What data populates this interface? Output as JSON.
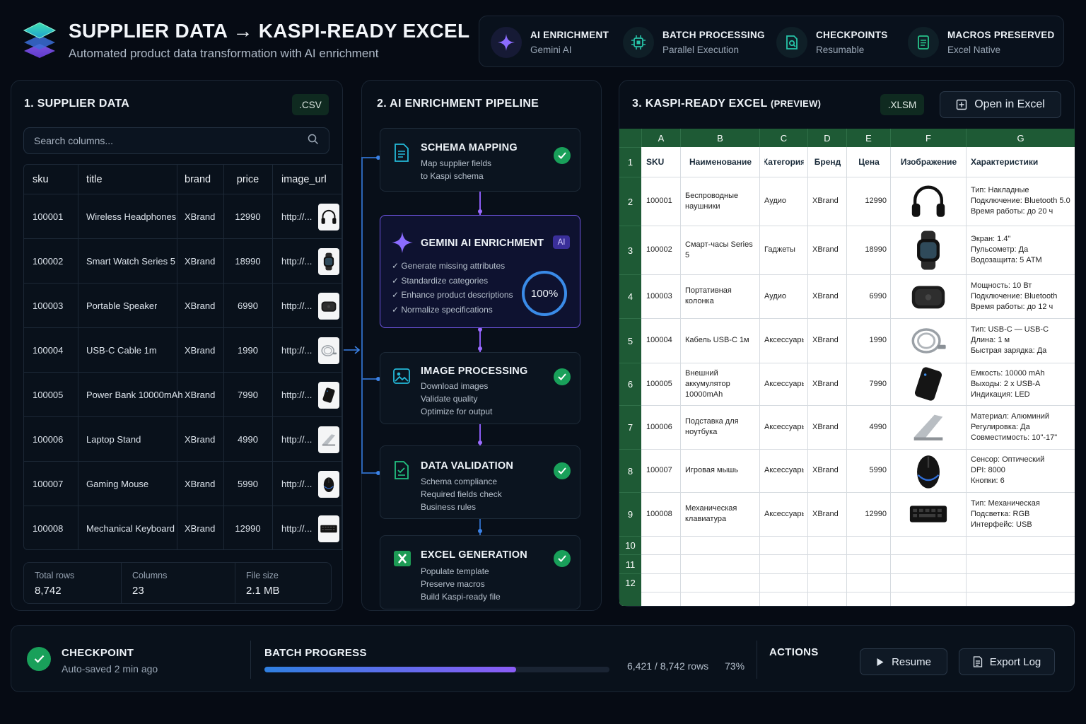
{
  "header": {
    "title": "SUPPLIER DATA → KASPI-READY EXCEL",
    "subtitle": "Automated product data transformation with AI enrichment",
    "features": [
      {
        "title": "AI ENRICHMENT",
        "subtitle": "Gemini AI",
        "icon": "sparkle-icon"
      },
      {
        "title": "BATCH PROCESSING",
        "subtitle": "Parallel Execution",
        "icon": "chip-icon"
      },
      {
        "title": "CHECKPOINTS",
        "subtitle": "Resumable",
        "icon": "checkpoint-icon"
      },
      {
        "title": "MACROS PRESERVED",
        "subtitle": "Excel Native",
        "icon": "document-icon"
      }
    ]
  },
  "supplier": {
    "title": "1. SUPPLIER DATA",
    "format_badge": ".CSV",
    "search_placeholder": "Search columns...",
    "columns": [
      "sku",
      "title",
      "brand",
      "price",
      "image_url"
    ],
    "rows": [
      {
        "sku": "100001",
        "title": "Wireless Headphones",
        "brand": "XBrand",
        "price": "12990",
        "image_url": "http://...",
        "icon": "headphones-icon"
      },
      {
        "sku": "100002",
        "title": "Smart Watch Series 5",
        "brand": "XBrand",
        "price": "18990",
        "image_url": "http://...",
        "icon": "watch-icon"
      },
      {
        "sku": "100003",
        "title": "Portable Speaker",
        "brand": "XBrand",
        "price": "6990",
        "image_url": "http://...",
        "icon": "speaker-icon"
      },
      {
        "sku": "100004",
        "title": "USB-C Cable 1m",
        "brand": "XBrand",
        "price": "1990",
        "image_url": "http://...",
        "icon": "cable-icon"
      },
      {
        "sku": "100005",
        "title": "Power Bank 10000mAh",
        "brand": "XBrand",
        "price": "7990",
        "image_url": "http://...",
        "icon": "powerbank-icon"
      },
      {
        "sku": "100006",
        "title": "Laptop Stand",
        "brand": "XBrand",
        "price": "4990",
        "image_url": "http://...",
        "icon": "laptop-stand-icon"
      },
      {
        "sku": "100007",
        "title": "Gaming Mouse",
        "brand": "XBrand",
        "price": "5990",
        "image_url": "http://...",
        "icon": "mouse-icon"
      },
      {
        "sku": "100008",
        "title": "Mechanical Keyboard",
        "brand": "XBrand",
        "price": "12990",
        "image_url": "http://...",
        "icon": "keyboard-icon"
      }
    ],
    "stats": [
      {
        "label": "Total rows",
        "value": "8,742"
      },
      {
        "label": "Columns",
        "value": "23"
      },
      {
        "label": "File size",
        "value": "2.1 MB"
      }
    ]
  },
  "pipeline": {
    "title": "2. AI ENRICHMENT PIPELINE",
    "schema": {
      "name": "SCHEMA MAPPING",
      "lines": [
        "Map supplier fields",
        "to Kaspi schema"
      ]
    },
    "gemini": {
      "name": "GEMINI AI ENRICHMENT",
      "badge": "AI",
      "items": [
        "✓ Generate missing attributes",
        "✓ Standardize categories",
        "✓ Enhance product descriptions",
        "✓ Normalize specifications"
      ],
      "progress_label": "100%",
      "progress": 1.0
    },
    "image": {
      "name": "IMAGE PROCESSING",
      "lines": [
        "Download images",
        "Validate quality",
        "Optimize for output"
      ]
    },
    "validation": {
      "name": "DATA VALIDATION",
      "lines": [
        "Schema compliance",
        "Required fields check",
        "Business rules"
      ]
    },
    "excel": {
      "name": "EXCEL GENERATION",
      "lines": [
        "Populate template",
        "Preserve macros",
        "Build Kaspi-ready file"
      ]
    }
  },
  "excel": {
    "title": "3. KASPI-READY EXCEL",
    "title_suffix": "(PREVIEW)",
    "format_badge": ".XLSM",
    "open_button": "Open in Excel",
    "col_letters": [
      "A",
      "B",
      "C",
      "D",
      "E",
      "F",
      "G"
    ],
    "row_numbers": [
      "1",
      "2",
      "3",
      "4",
      "5",
      "6",
      "7",
      "8",
      "9",
      "10",
      "11",
      "12"
    ],
    "headers": [
      "SKU",
      "Наименование",
      "Категория",
      "Бренд",
      "Цена",
      "Изображение",
      "Характеристики"
    ],
    "rows": [
      {
        "sku": "100001",
        "name": "Беспроводные наушники",
        "category": "Аудио",
        "brand": "XBrand",
        "price": "12990",
        "icon": "headphones-icon",
        "specs": [
          "Тип: Накладные",
          "Подключение: Bluetooth 5.0",
          "Время работы: до 20 ч"
        ]
      },
      {
        "sku": "100002",
        "name": "Смарт-часы Series 5",
        "category": "Гаджеты",
        "brand": "XBrand",
        "price": "18990",
        "icon": "watch-icon",
        "specs": [
          "Экран: 1.4\"",
          "Пульсометр: Да",
          "Водозащита: 5 ATM"
        ]
      },
      {
        "sku": "100003",
        "name": "Портативная колонка",
        "category": "Аудио",
        "brand": "XBrand",
        "price": "6990",
        "icon": "speaker-icon",
        "specs": [
          "Мощность: 10 Вт",
          "Подключение: Bluetooth",
          "Время работы: до 12 ч"
        ]
      },
      {
        "sku": "100004",
        "name": "Кабель USB-C 1м",
        "category": "Аксессуары",
        "brand": "XBrand",
        "price": "1990",
        "icon": "cable-icon",
        "specs": [
          "Тип: USB-C — USB-C",
          "Длина: 1 м",
          "Быстрая зарядка: Да"
        ]
      },
      {
        "sku": "100005",
        "name": "Внешний аккумулятор 10000mAh",
        "category": "Аксессуары",
        "brand": "XBrand",
        "price": "7990",
        "icon": "powerbank-icon",
        "specs": [
          "Емкость: 10000 mAh",
          "Выходы: 2 x USB-A",
          "Индикация: LED"
        ]
      },
      {
        "sku": "100006",
        "name": "Подставка для ноутбука",
        "category": "Аксессуары",
        "brand": "XBrand",
        "price": "4990",
        "icon": "laptop-stand-icon",
        "specs": [
          "Материал: Алюминий",
          "Регулировка: Да",
          "Совместимость: 10\"-17\""
        ]
      },
      {
        "sku": "100007",
        "name": "Игровая мышь",
        "category": "Аксессуары",
        "brand": "XBrand",
        "price": "5990",
        "icon": "mouse-icon",
        "specs": [
          "Сенсор: Оптический",
          "DPI: 8000",
          "Кнопки: 6"
        ]
      },
      {
        "sku": "100008",
        "name": "Механическая клавиатура",
        "category": "Аксессуары",
        "brand": "XBrand",
        "price": "12990",
        "icon": "keyboard-icon",
        "specs": [
          "Тип: Механическая",
          "Подсветка: RGB",
          "Интерфейс: USB"
        ]
      }
    ]
  },
  "bottom": {
    "checkpoint_title": "CHECKPOINT",
    "checkpoint_sub": "Auto-saved 2 min ago",
    "progress_title": "BATCH PROGRESS",
    "progress_rows": "6,421 / 8,742 rows",
    "progress_pct": "73%",
    "progress": 0.73,
    "actions_title": "ACTIONS",
    "resume_label": "Resume",
    "export_label": "Export Log"
  },
  "colors": {
    "accent_green": "#19a05a",
    "accent_blue": "#2f7fe0",
    "accent_purple": "#8b5cf6",
    "excel_green": "#1e5a35"
  }
}
